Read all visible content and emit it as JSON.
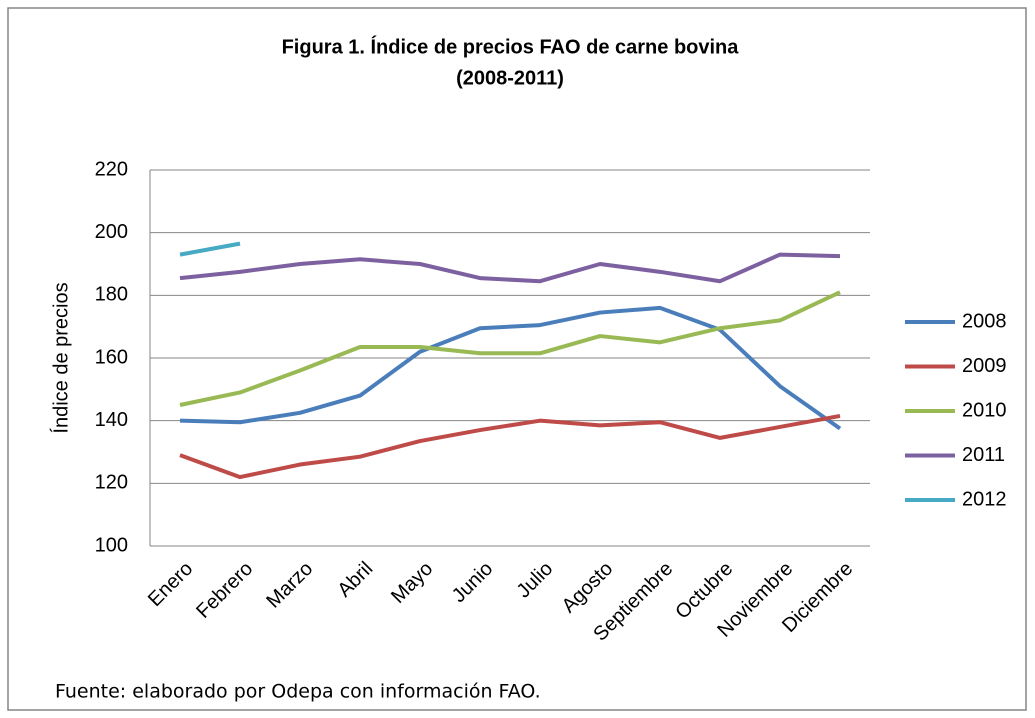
{
  "chart_data": {
    "type": "line",
    "title": "Figura 1. Índice de precios FAO de carne bovina",
    "subtitle": "(2008-2011)",
    "y_label": "Índice de precios",
    "source": "Fuente: elaborado por Odepa con información FAO.",
    "categories": [
      "Enero",
      "Febrero",
      "Marzo",
      "Abril",
      "Mayo",
      "Junio",
      "Julio",
      "Agosto",
      "Septiembre",
      "Octubre",
      "Noviembre",
      "Diciembre"
    ],
    "series": [
      {
        "name": "2008",
        "color": "#4a7ebb",
        "values": [
          140,
          139.5,
          142.5,
          148,
          162,
          169.5,
          170.5,
          174.5,
          176,
          169,
          151,
          137.5
        ]
      },
      {
        "name": "2009",
        "color": "#be4b48",
        "values": [
          129,
          122,
          126,
          128.5,
          133.5,
          137,
          140,
          138.5,
          139.5,
          134.5,
          138,
          141.5
        ]
      },
      {
        "name": "2010",
        "color": "#98b954",
        "values": [
          145,
          149,
          156,
          163.5,
          163.5,
          161.5,
          161.5,
          167,
          165,
          169.5,
          172,
          181
        ]
      },
      {
        "name": "2011",
        "color": "#7d60a0",
        "values": [
          185.5,
          187.5,
          190,
          191.5,
          190,
          185.5,
          184.5,
          190,
          187.5,
          184.5,
          193,
          192.5
        ]
      },
      {
        "name": "2012",
        "color": "#46aac5",
        "values": [
          193,
          196.5,
          null,
          null,
          null,
          null,
          null,
          null,
          null,
          null,
          null,
          null
        ]
      }
    ],
    "ylim": [
      100,
      220
    ],
    "yticks": [
      100,
      120,
      140,
      160,
      180,
      200,
      220
    ],
    "grid": true,
    "legend": "right"
  }
}
